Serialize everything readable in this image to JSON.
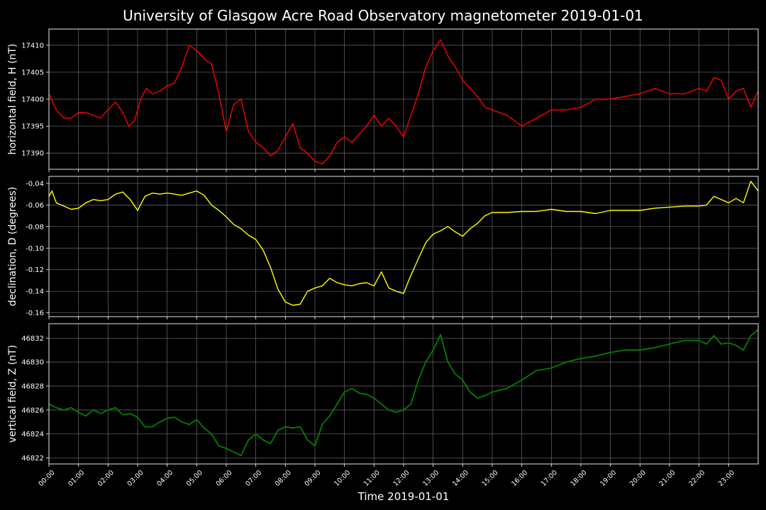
{
  "figure": {
    "title": "University of Glasgow Acre Road Observatory magnetometer 2019-01-01",
    "xlabel": "Time 2019-01-01"
  },
  "chart_data": [
    {
      "type": "line",
      "title": "",
      "xlabel": "",
      "ylabel": "horizontal field, H (nT)",
      "color": "#ff0000",
      "x_unit": "hours",
      "xlim": [
        0,
        24
      ],
      "ylim": [
        17387,
        17413
      ],
      "yticks": [
        17390,
        17395,
        17400,
        17405,
        17410
      ],
      "grid": true,
      "series": [
        {
          "x": [
            0,
            0.25,
            0.5,
            0.75,
            1,
            1.25,
            1.5,
            1.75,
            2,
            2.25,
            2.5,
            2.7,
            2.9,
            3.1,
            3.3,
            3.5,
            3.75,
            4,
            4.25,
            4.5,
            4.75,
            5,
            5.25,
            5.5,
            5.75,
            6,
            6.25,
            6.5,
            6.75,
            7,
            7.25,
            7.5,
            7.75,
            8,
            8.25,
            8.5,
            8.75,
            9,
            9.25,
            9.5,
            9.75,
            10,
            10.25,
            10.5,
            10.75,
            11,
            11.25,
            11.5,
            11.75,
            12,
            12.25,
            12.5,
            12.75,
            13,
            13.25,
            13.5,
            13.75,
            14,
            14.25,
            14.5,
            14.75,
            15,
            15.5,
            16,
            16.5,
            17,
            17.5,
            18,
            18.5,
            19,
            19.5,
            20,
            20.5,
            21,
            21.5,
            22,
            22.25,
            22.5,
            22.75,
            23,
            23.25,
            23.5,
            23.75,
            24
          ],
          "y": [
            17401,
            17398,
            17396.5,
            17396.5,
            17397.5,
            17397.5,
            17397,
            17396.5,
            17398,
            17399.5,
            17397.5,
            17395,
            17396,
            17400,
            17402,
            17401,
            17401.5,
            17402.5,
            17403,
            17406,
            17410,
            17409,
            17407.5,
            17406.5,
            17401,
            17394,
            17399,
            17400,
            17394,
            17392,
            17391,
            17389.5,
            17390.5,
            17393,
            17395.5,
            17391,
            17390,
            17388.5,
            17388,
            17389.5,
            17392,
            17393,
            17392,
            17393.5,
            17395,
            17397,
            17395,
            17396.5,
            17395,
            17393,
            17397,
            17401,
            17406,
            17409,
            17411,
            17408,
            17406,
            17403.5,
            17402,
            17400.5,
            17398.5,
            17398,
            17397,
            17395,
            17396.5,
            17398,
            17398,
            17398.5,
            17400,
            17400,
            17400.5,
            17401,
            17402,
            17401,
            17401,
            17402,
            17401.5,
            17404,
            17403.5,
            17400,
            17401.5,
            17402,
            17398.5,
            17401.5
          ]
        }
      ]
    },
    {
      "type": "line",
      "title": "",
      "xlabel": "",
      "ylabel": "declination, D (degrees)",
      "color": "#ffff00",
      "x_unit": "hours",
      "xlim": [
        0,
        24
      ],
      "ylim": [
        -0.1635,
        -0.0335
      ],
      "yticks": [
        -0.04,
        -0.06,
        -0.08,
        -0.1,
        -0.12,
        -0.14,
        -0.16
      ],
      "grid": true,
      "series": [
        {
          "x": [
            0,
            0.1,
            0.25,
            0.5,
            0.75,
            1,
            1.25,
            1.5,
            1.75,
            2,
            2.25,
            2.5,
            2.75,
            3,
            3.25,
            3.5,
            3.75,
            4,
            4.25,
            4.5,
            4.75,
            5,
            5.25,
            5.5,
            5.75,
            6,
            6.25,
            6.5,
            6.75,
            7,
            7.25,
            7.5,
            7.75,
            8,
            8.25,
            8.5,
            8.75,
            9,
            9.25,
            9.5,
            9.75,
            10,
            10.25,
            10.5,
            10.75,
            11,
            11.25,
            11.5,
            11.75,
            12,
            12.25,
            12.5,
            12.75,
            13,
            13.25,
            13.5,
            13.75,
            14,
            14.25,
            14.5,
            14.75,
            15,
            15.5,
            16,
            16.5,
            17,
            17.5,
            18,
            18.5,
            19,
            19.5,
            20,
            20.5,
            21,
            21.5,
            22,
            22.25,
            22.5,
            22.75,
            23,
            23.25,
            23.5,
            23.75,
            24
          ],
          "y": [
            -0.052,
            -0.047,
            -0.058,
            -0.061,
            -0.064,
            -0.063,
            -0.058,
            -0.055,
            -0.056,
            -0.055,
            -0.05,
            -0.048,
            -0.055,
            -0.065,
            -0.052,
            -0.049,
            -0.05,
            -0.049,
            -0.05,
            -0.051,
            -0.049,
            -0.047,
            -0.051,
            -0.06,
            -0.065,
            -0.071,
            -0.078,
            -0.082,
            -0.088,
            -0.092,
            -0.102,
            -0.118,
            -0.138,
            -0.15,
            -0.153,
            -0.152,
            -0.14,
            -0.137,
            -0.135,
            -0.128,
            -0.132,
            -0.134,
            -0.135,
            -0.133,
            -0.132,
            -0.135,
            -0.122,
            -0.137,
            -0.14,
            -0.142,
            -0.125,
            -0.11,
            -0.095,
            -0.087,
            -0.084,
            -0.08,
            -0.085,
            -0.089,
            -0.082,
            -0.077,
            -0.07,
            -0.067,
            -0.067,
            -0.066,
            -0.066,
            -0.064,
            -0.066,
            -0.066,
            -0.068,
            -0.065,
            -0.065,
            -0.065,
            -0.063,
            -0.062,
            -0.061,
            -0.061,
            -0.06,
            -0.052,
            -0.055,
            -0.058,
            -0.054,
            -0.058,
            -0.038,
            -0.047
          ]
        }
      ]
    },
    {
      "type": "line",
      "title": "",
      "xlabel": "Time 2019-01-01",
      "ylabel": "vertical field, Z (nT)",
      "color": "#008000",
      "x_unit": "hours",
      "xlim": [
        0,
        24
      ],
      "ylim": [
        46821.5,
        46833.2
      ],
      "yticks": [
        46822,
        46824,
        46826,
        46828,
        46830,
        46832
      ],
      "xticks": [
        "00:00",
        "01:00",
        "02:00",
        "03:00",
        "04:00",
        "05:00",
        "06:00",
        "07:00",
        "08:00",
        "09:00",
        "10:00",
        "11:00",
        "12:00",
        "13:00",
        "14:00",
        "15:00",
        "16:00",
        "17:00",
        "18:00",
        "19:00",
        "20:00",
        "21:00",
        "22:00",
        "23:00"
      ],
      "grid": true,
      "series": [
        {
          "x": [
            0,
            0.25,
            0.5,
            0.75,
            1,
            1.25,
            1.5,
            1.75,
            2,
            2.25,
            2.5,
            2.75,
            3,
            3.25,
            3.5,
            3.75,
            4,
            4.25,
            4.5,
            4.75,
            5,
            5.25,
            5.5,
            5.75,
            6,
            6.25,
            6.5,
            6.75,
            7,
            7.25,
            7.5,
            7.75,
            8,
            8.25,
            8.5,
            8.75,
            9,
            9.25,
            9.5,
            9.75,
            10,
            10.25,
            10.5,
            10.75,
            11,
            11.25,
            11.5,
            11.75,
            12,
            12.25,
            12.5,
            12.75,
            13,
            13.25,
            13.5,
            13.75,
            14,
            14.25,
            14.5,
            14.75,
            15,
            15.5,
            16,
            16.5,
            17,
            17.5,
            18,
            18.5,
            19,
            19.5,
            20,
            20.5,
            21,
            21.5,
            22,
            22.25,
            22.5,
            22.75,
            23,
            23.25,
            23.5,
            23.75,
            24
          ],
          "y": [
            46826.5,
            46826.2,
            46826,
            46826.2,
            46825.8,
            46825.5,
            46826,
            46825.7,
            46826,
            46826.2,
            46825.6,
            46825.7,
            46825.4,
            46824.6,
            46824.6,
            46825,
            46825.3,
            46825.4,
            46825,
            46824.8,
            46825.2,
            46824.5,
            46824,
            46823,
            46822.8,
            46822.5,
            46822.2,
            46823.5,
            46824,
            46823.5,
            46823.2,
            46824.3,
            46824.6,
            46824.5,
            46824.6,
            46823.5,
            46823,
            46824.8,
            46825.5,
            46826.5,
            46827.5,
            46827.8,
            46827.4,
            46827.3,
            46827,
            46826.5,
            46826,
            46825.8,
            46826,
            46826.5,
            46828.5,
            46830,
            46831,
            46832.3,
            46830,
            46829,
            46828.5,
            46827.5,
            46827,
            46827.2,
            46827.5,
            46827.8,
            46828.5,
            46829.3,
            46829.5,
            46830,
            46830.3,
            46830.5,
            46830.8,
            46831,
            46831,
            46831.2,
            46831.5,
            46831.8,
            46831.8,
            46831.5,
            46832.2,
            46831.5,
            46831.6,
            46831.4,
            46831,
            46832.2,
            46832.7
          ]
        }
      ]
    }
  ]
}
